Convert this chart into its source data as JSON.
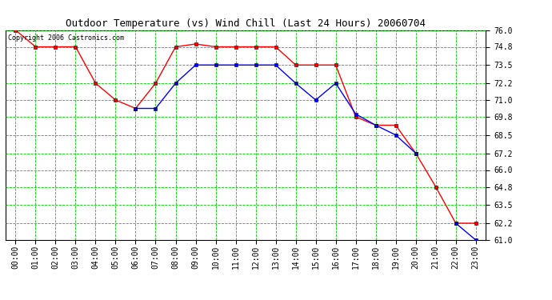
{
  "title": "Outdoor Temperature (vs) Wind Chill (Last 24 Hours) 20060704",
  "copyright": "Copyright 2006 Castronics.com",
  "hours": [
    "00:00",
    "01:00",
    "02:00",
    "03:00",
    "04:00",
    "05:00",
    "06:00",
    "07:00",
    "08:00",
    "09:00",
    "10:00",
    "11:00",
    "12:00",
    "13:00",
    "14:00",
    "15:00",
    "16:00",
    "17:00",
    "18:00",
    "19:00",
    "20:00",
    "21:00",
    "22:00",
    "23:00"
  ],
  "temp": [
    76.0,
    74.8,
    74.8,
    74.8,
    72.2,
    71.0,
    70.4,
    72.2,
    74.8,
    75.0,
    74.8,
    74.8,
    74.8,
    74.8,
    73.5,
    73.5,
    73.5,
    69.8,
    69.2,
    69.2,
    67.2,
    64.8,
    62.2,
    62.2
  ],
  "windchill": [
    null,
    null,
    null,
    null,
    null,
    null,
    70.4,
    70.4,
    72.2,
    73.5,
    73.5,
    73.5,
    73.5,
    73.5,
    72.2,
    71.0,
    72.2,
    70.0,
    69.2,
    68.5,
    67.2,
    null,
    62.2,
    61.0
  ],
  "temp_color": "#FF0000",
  "windchill_color": "#0000FF",
  "bg_color": "#FFFFFF",
  "grid_color": "#00CC00",
  "ylim": [
    61.0,
    76.0
  ],
  "yticks": [
    61.0,
    62.2,
    63.5,
    64.8,
    66.0,
    67.2,
    68.5,
    69.8,
    71.0,
    72.2,
    73.5,
    74.8,
    76.0
  ],
  "title_fontsize": 9,
  "copyright_fontsize": 6,
  "tick_fontsize": 7,
  "marker_size": 3
}
